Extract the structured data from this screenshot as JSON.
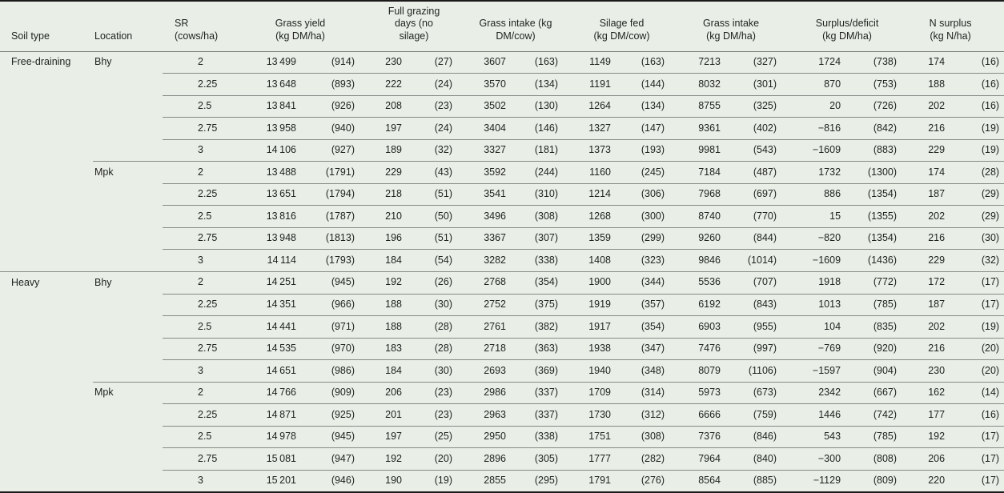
{
  "colors": {
    "background": "#e9efe7",
    "rule_heavy": "#1a1a1a",
    "rule_light": "#848b86",
    "text": "#1f211f"
  },
  "table": {
    "column_headers": [
      "Soil type",
      "Location",
      "SR (cows/ha)",
      "Grass yield\n(kg DM/ha)",
      "Full grazing\ndays (no\nsilage)",
      "Grass intake (kg\nDM/cow)",
      "Silage fed\n(kg DM/cow)",
      "Grass intake\n(kg DM/ha)",
      "Surplus/deficit\n(kg DM/ha)",
      "N surplus\n(kg N/ha)"
    ],
    "groups": [
      {
        "soil_type": "Free-draining",
        "locations": [
          {
            "location": "Bhy",
            "rows": [
              {
                "sr": "2",
                "grass_yield": [
                  "13 499",
                  "(914)"
                ],
                "full_grazing_days": [
                  "230",
                  "(27)"
                ],
                "grass_intake_cow": [
                  "3607",
                  "(163)"
                ],
                "silage_fed": [
                  "1149",
                  "(163)"
                ],
                "grass_intake_ha": [
                  "7213",
                  "(327)"
                ],
                "surplus_deficit": [
                  "1724",
                  "(738)"
                ],
                "n_surplus": [
                  "174",
                  "(16)"
                ]
              },
              {
                "sr": "2.25",
                "grass_yield": [
                  "13 648",
                  "(893)"
                ],
                "full_grazing_days": [
                  "222",
                  "(24)"
                ],
                "grass_intake_cow": [
                  "3570",
                  "(134)"
                ],
                "silage_fed": [
                  "1191",
                  "(144)"
                ],
                "grass_intake_ha": [
                  "8032",
                  "(301)"
                ],
                "surplus_deficit": [
                  "870",
                  "(753)"
                ],
                "n_surplus": [
                  "188",
                  "(16)"
                ]
              },
              {
                "sr": "2.5",
                "grass_yield": [
                  "13 841",
                  "(926)"
                ],
                "full_grazing_days": [
                  "208",
                  "(23)"
                ],
                "grass_intake_cow": [
                  "3502",
                  "(130)"
                ],
                "silage_fed": [
                  "1264",
                  "(134)"
                ],
                "grass_intake_ha": [
                  "8755",
                  "(325)"
                ],
                "surplus_deficit": [
                  "20",
                  "(726)"
                ],
                "n_surplus": [
                  "202",
                  "(16)"
                ]
              },
              {
                "sr": "2.75",
                "grass_yield": [
                  "13 958",
                  "(940)"
                ],
                "full_grazing_days": [
                  "197",
                  "(24)"
                ],
                "grass_intake_cow": [
                  "3404",
                  "(146)"
                ],
                "silage_fed": [
                  "1327",
                  "(147)"
                ],
                "grass_intake_ha": [
                  "9361",
                  "(402)"
                ],
                "surplus_deficit": [
                  "−816",
                  "(842)"
                ],
                "n_surplus": [
                  "216",
                  "(19)"
                ]
              },
              {
                "sr": "3",
                "grass_yield": [
                  "14 106",
                  "(927)"
                ],
                "full_grazing_days": [
                  "189",
                  "(32)"
                ],
                "grass_intake_cow": [
                  "3327",
                  "(181)"
                ],
                "silage_fed": [
                  "1373",
                  "(193)"
                ],
                "grass_intake_ha": [
                  "9981",
                  "(543)"
                ],
                "surplus_deficit": [
                  "−1609",
                  "(883)"
                ],
                "n_surplus": [
                  "229",
                  "(19)"
                ]
              }
            ]
          },
          {
            "location": "Mpk",
            "rows": [
              {
                "sr": "2",
                "grass_yield": [
                  "13 488",
                  "(1791)"
                ],
                "full_grazing_days": [
                  "229",
                  "(43)"
                ],
                "grass_intake_cow": [
                  "3592",
                  "(244)"
                ],
                "silage_fed": [
                  "1160",
                  "(245)"
                ],
                "grass_intake_ha": [
                  "7184",
                  "(487)"
                ],
                "surplus_deficit": [
                  "1732",
                  "(1300)"
                ],
                "n_surplus": [
                  "174",
                  "(28)"
                ]
              },
              {
                "sr": "2.25",
                "grass_yield": [
                  "13 651",
                  "(1794)"
                ],
                "full_grazing_days": [
                  "218",
                  "(51)"
                ],
                "grass_intake_cow": [
                  "3541",
                  "(310)"
                ],
                "silage_fed": [
                  "1214",
                  "(306)"
                ],
                "grass_intake_ha": [
                  "7968",
                  "(697)"
                ],
                "surplus_deficit": [
                  "886",
                  "(1354)"
                ],
                "n_surplus": [
                  "187",
                  "(29)"
                ]
              },
              {
                "sr": "2.5",
                "grass_yield": [
                  "13 816",
                  "(1787)"
                ],
                "full_grazing_days": [
                  "210",
                  "(50)"
                ],
                "grass_intake_cow": [
                  "3496",
                  "(308)"
                ],
                "silage_fed": [
                  "1268",
                  "(300)"
                ],
                "grass_intake_ha": [
                  "8740",
                  "(770)"
                ],
                "surplus_deficit": [
                  "15",
                  "(1355)"
                ],
                "n_surplus": [
                  "202",
                  "(29)"
                ]
              },
              {
                "sr": "2.75",
                "grass_yield": [
                  "13 948",
                  "(1813)"
                ],
                "full_grazing_days": [
                  "196",
                  "(51)"
                ],
                "grass_intake_cow": [
                  "3367",
                  "(307)"
                ],
                "silage_fed": [
                  "1359",
                  "(299)"
                ],
                "grass_intake_ha": [
                  "9260",
                  "(844)"
                ],
                "surplus_deficit": [
                  "−820",
                  "(1354)"
                ],
                "n_surplus": [
                  "216",
                  "(30)"
                ]
              },
              {
                "sr": "3",
                "grass_yield": [
                  "14 114",
                  "(1793)"
                ],
                "full_grazing_days": [
                  "184",
                  "(54)"
                ],
                "grass_intake_cow": [
                  "3282",
                  "(338)"
                ],
                "silage_fed": [
                  "1408",
                  "(323)"
                ],
                "grass_intake_ha": [
                  "9846",
                  "(1014)"
                ],
                "surplus_deficit": [
                  "−1609",
                  "(1436)"
                ],
                "n_surplus": [
                  "229",
                  "(32)"
                ]
              }
            ]
          }
        ]
      },
      {
        "soil_type": "Heavy",
        "locations": [
          {
            "location": "Bhy",
            "rows": [
              {
                "sr": "2",
                "grass_yield": [
                  "14 251",
                  "(945)"
                ],
                "full_grazing_days": [
                  "192",
                  "(26)"
                ],
                "grass_intake_cow": [
                  "2768",
                  "(354)"
                ],
                "silage_fed": [
                  "1900",
                  "(344)"
                ],
                "grass_intake_ha": [
                  "5536",
                  "(707)"
                ],
                "surplus_deficit": [
                  "1918",
                  "(772)"
                ],
                "n_surplus": [
                  "172",
                  "(17)"
                ]
              },
              {
                "sr": "2.25",
                "grass_yield": [
                  "14 351",
                  "(966)"
                ],
                "full_grazing_days": [
                  "188",
                  "(30)"
                ],
                "grass_intake_cow": [
                  "2752",
                  "(375)"
                ],
                "silage_fed": [
                  "1919",
                  "(357)"
                ],
                "grass_intake_ha": [
                  "6192",
                  "(843)"
                ],
                "surplus_deficit": [
                  "1013",
                  "(785)"
                ],
                "n_surplus": [
                  "187",
                  "(17)"
                ]
              },
              {
                "sr": "2.5",
                "grass_yield": [
                  "14 441",
                  "(971)"
                ],
                "full_grazing_days": [
                  "188",
                  "(28)"
                ],
                "grass_intake_cow": [
                  "2761",
                  "(382)"
                ],
                "silage_fed": [
                  "1917",
                  "(354)"
                ],
                "grass_intake_ha": [
                  "6903",
                  "(955)"
                ],
                "surplus_deficit": [
                  "104",
                  "(835)"
                ],
                "n_surplus": [
                  "202",
                  "(19)"
                ]
              },
              {
                "sr": "2.75",
                "grass_yield": [
                  "14 535",
                  "(970)"
                ],
                "full_grazing_days": [
                  "183",
                  "(28)"
                ],
                "grass_intake_cow": [
                  "2718",
                  "(363)"
                ],
                "silage_fed": [
                  "1938",
                  "(347)"
                ],
                "grass_intake_ha": [
                  "7476",
                  "(997)"
                ],
                "surplus_deficit": [
                  "−769",
                  "(920)"
                ],
                "n_surplus": [
                  "216",
                  "(20)"
                ]
              },
              {
                "sr": "3",
                "grass_yield": [
                  "14 651",
                  "(986)"
                ],
                "full_grazing_days": [
                  "184",
                  "(30)"
                ],
                "grass_intake_cow": [
                  "2693",
                  "(369)"
                ],
                "silage_fed": [
                  "1940",
                  "(348)"
                ],
                "grass_intake_ha": [
                  "8079",
                  "(1106)"
                ],
                "surplus_deficit": [
                  "−1597",
                  "(904)"
                ],
                "n_surplus": [
                  "230",
                  "(20)"
                ]
              }
            ]
          },
          {
            "location": "Mpk",
            "rows": [
              {
                "sr": "2",
                "grass_yield": [
                  "14 766",
                  "(909)"
                ],
                "full_grazing_days": [
                  "206",
                  "(23)"
                ],
                "grass_intake_cow": [
                  "2986",
                  "(337)"
                ],
                "silage_fed": [
                  "1709",
                  "(314)"
                ],
                "grass_intake_ha": [
                  "5973",
                  "(673)"
                ],
                "surplus_deficit": [
                  "2342",
                  "(667)"
                ],
                "n_surplus": [
                  "162",
                  "(14)"
                ]
              },
              {
                "sr": "2.25",
                "grass_yield": [
                  "14 871",
                  "(925)"
                ],
                "full_grazing_days": [
                  "201",
                  "(23)"
                ],
                "grass_intake_cow": [
                  "2963",
                  "(337)"
                ],
                "silage_fed": [
                  "1730",
                  "(312)"
                ],
                "grass_intake_ha": [
                  "6666",
                  "(759)"
                ],
                "surplus_deficit": [
                  "1446",
                  "(742)"
                ],
                "n_surplus": [
                  "177",
                  "(16)"
                ]
              },
              {
                "sr": "2.5",
                "grass_yield": [
                  "14 978",
                  "(945)"
                ],
                "full_grazing_days": [
                  "197",
                  "(25)"
                ],
                "grass_intake_cow": [
                  "2950",
                  "(338)"
                ],
                "silage_fed": [
                  "1751",
                  "(308)"
                ],
                "grass_intake_ha": [
                  "7376",
                  "(846)"
                ],
                "surplus_deficit": [
                  "543",
                  "(785)"
                ],
                "n_surplus": [
                  "192",
                  "(17)"
                ]
              },
              {
                "sr": "2.75",
                "grass_yield": [
                  "15 081",
                  "(947)"
                ],
                "full_grazing_days": [
                  "192",
                  "(20)"
                ],
                "grass_intake_cow": [
                  "2896",
                  "(305)"
                ],
                "silage_fed": [
                  "1777",
                  "(282)"
                ],
                "grass_intake_ha": [
                  "7964",
                  "(840)"
                ],
                "surplus_deficit": [
                  "−300",
                  "(808)"
                ],
                "n_surplus": [
                  "206",
                  "(17)"
                ]
              },
              {
                "sr": "3",
                "grass_yield": [
                  "15 201",
                  "(946)"
                ],
                "full_grazing_days": [
                  "190",
                  "(19)"
                ],
                "grass_intake_cow": [
                  "2855",
                  "(295)"
                ],
                "silage_fed": [
                  "1791",
                  "(276)"
                ],
                "grass_intake_ha": [
                  "8564",
                  "(885)"
                ],
                "surplus_deficit": [
                  "−1129",
                  "(809)"
                ],
                "n_surplus": [
                  "220",
                  "(17)"
                ]
              }
            ]
          }
        ]
      }
    ]
  }
}
